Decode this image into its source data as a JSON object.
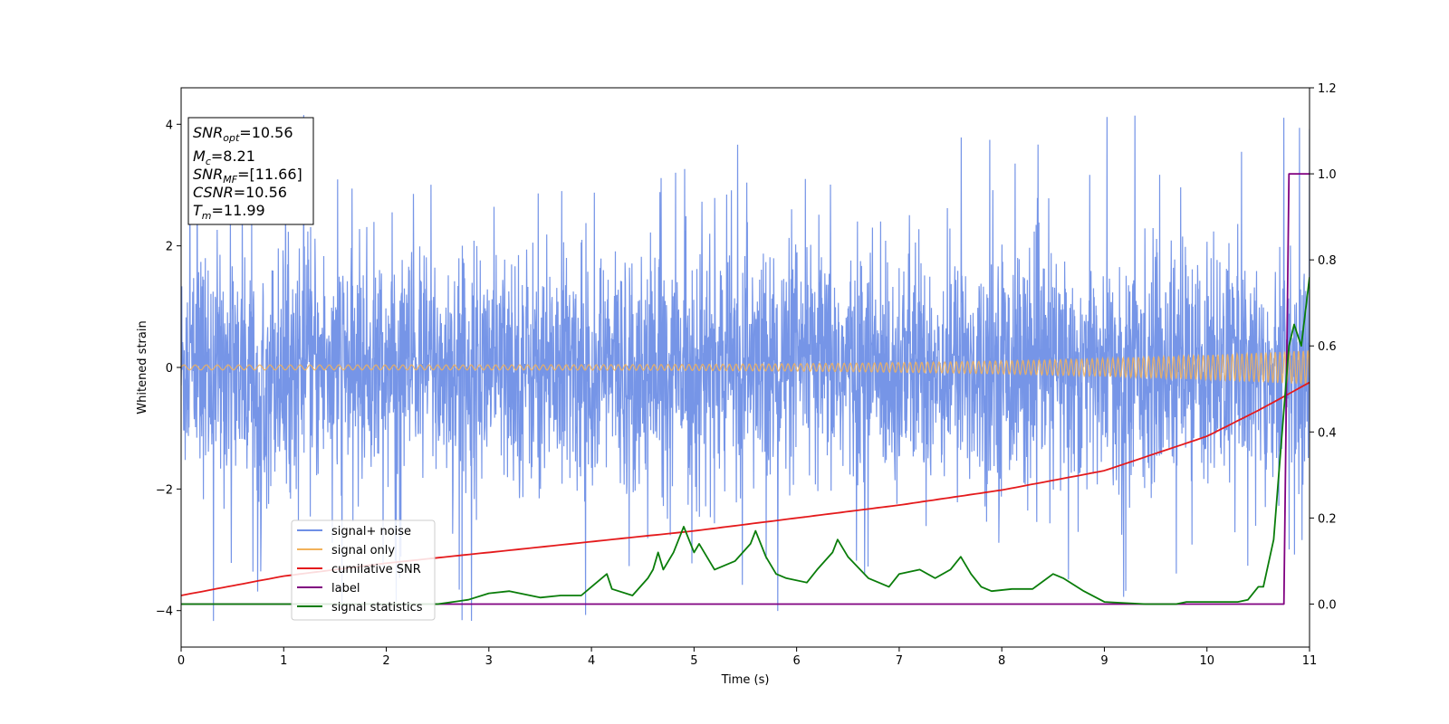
{
  "chart_data": {
    "type": "line",
    "xlabel": "Time (s)",
    "ylabel": "Whitened strain",
    "xlim": [
      0,
      11
    ],
    "ylim_left": [
      -4.6,
      4.6
    ],
    "ylim_right": [
      -0.1,
      1.2
    ],
    "x_ticks": [
      "0",
      "1",
      "2",
      "3",
      "4",
      "5",
      "6",
      "7",
      "8",
      "9",
      "10",
      "11"
    ],
    "y_ticks_left": [
      "4",
      "2",
      "0",
      "−2",
      "−4"
    ],
    "y_ticks_left_values": [
      4,
      2,
      0,
      -2,
      -4
    ],
    "y_ticks_right": [
      "1.2",
      "1.0",
      "0.8",
      "0.6",
      "0.4",
      "0.2",
      "0.0"
    ],
    "y_ticks_right_values": [
      1.2,
      1.0,
      0.8,
      0.6,
      0.4,
      0.2,
      0.0
    ],
    "grid": false,
    "legend_position": "lower-left",
    "info_box": {
      "snr_opt": {
        "main": "SNR",
        "sub": "opt",
        "value": "=10.56"
      },
      "mc": {
        "main": "M",
        "sub": "c",
        "value": "=8.21"
      },
      "snr_mf": {
        "main": "SNR",
        "sub": "MF",
        "value": "=[11.66]"
      },
      "csnr": {
        "main": "CSNR",
        "sub": "",
        "value": "=10.56"
      },
      "tm": {
        "main": "T",
        "sub": "m",
        "value": "=11.99"
      }
    },
    "series": [
      {
        "name": "signal+ noise",
        "color": "#6f8fe6",
        "axis": "left",
        "description_values": "noise-dominated whitened strain, roughly within ±2.5 with spikes to about ±4",
        "envelope_typical": 2.3,
        "envelope_peak": 4.2
      },
      {
        "name": "signal only",
        "color": "#f2b25a",
        "axis": "left",
        "amplitude_start": 0.04,
        "amplitude_end": 0.28
      },
      {
        "name": "cumilative SNR",
        "color": "#e41a1c",
        "axis": "right",
        "x": [
          0,
          1,
          2,
          3,
          4,
          5,
          6,
          7,
          8,
          9,
          10,
          10.5,
          11
        ],
        "y": [
          0.02,
          0.065,
          0.095,
          0.12,
          0.145,
          0.17,
          0.2,
          0.23,
          0.265,
          0.31,
          0.39,
          0.45,
          0.515
        ]
      },
      {
        "name": "label",
        "color": "#800080",
        "axis": "right",
        "x": [
          0,
          10.75,
          10.8,
          11
        ],
        "y": [
          0.0,
          0.0,
          1.0,
          1.0
        ]
      },
      {
        "name": "signal statistics",
        "color": "#0a7d0a",
        "axis": "right",
        "x": [
          0,
          0.5,
          1,
          1.5,
          2,
          2.5,
          2.8,
          3.0,
          3.2,
          3.5,
          3.7,
          3.9,
          4.0,
          4.15,
          4.2,
          4.4,
          4.55,
          4.6,
          4.65,
          4.7,
          4.8,
          4.9,
          5.0,
          5.05,
          5.2,
          5.4,
          5.55,
          5.6,
          5.7,
          5.8,
          5.9,
          6.1,
          6.2,
          6.35,
          6.4,
          6.5,
          6.7,
          6.8,
          6.9,
          7.0,
          7.2,
          7.35,
          7.5,
          7.6,
          7.7,
          7.8,
          7.9,
          8.1,
          8.3,
          8.5,
          8.6,
          8.8,
          9.0,
          9.4,
          9.7,
          9.8,
          10.0,
          10.3,
          10.4,
          10.5,
          10.55,
          10.65,
          10.7,
          10.8,
          10.85,
          10.92,
          11.0
        ],
        "y": [
          0.0,
          0.0,
          0.0,
          0.0,
          0.0,
          0.0,
          0.01,
          0.025,
          0.03,
          0.015,
          0.02,
          0.02,
          0.04,
          0.07,
          0.035,
          0.02,
          0.06,
          0.08,
          0.12,
          0.08,
          0.12,
          0.18,
          0.12,
          0.14,
          0.08,
          0.1,
          0.14,
          0.17,
          0.11,
          0.07,
          0.06,
          0.05,
          0.08,
          0.12,
          0.15,
          0.11,
          0.06,
          0.05,
          0.04,
          0.07,
          0.08,
          0.06,
          0.08,
          0.11,
          0.07,
          0.04,
          0.03,
          0.035,
          0.035,
          0.07,
          0.06,
          0.03,
          0.005,
          0.0,
          0.0,
          0.005,
          0.005,
          0.005,
          0.01,
          0.04,
          0.04,
          0.15,
          0.3,
          0.6,
          0.65,
          0.6,
          0.76
        ]
      }
    ]
  }
}
